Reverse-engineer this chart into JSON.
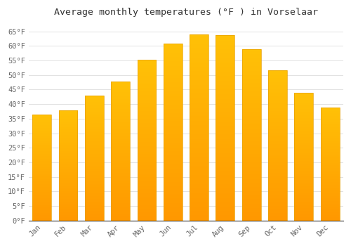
{
  "title": "Average monthly temperatures (°F ) in Vorselaar",
  "months": [
    "Jan",
    "Feb",
    "Mar",
    "Apr",
    "May",
    "Jun",
    "Jul",
    "Aug",
    "Sep",
    "Oct",
    "Nov",
    "Dec"
  ],
  "values": [
    36.3,
    37.9,
    43.0,
    47.8,
    55.2,
    60.8,
    63.9,
    63.7,
    58.8,
    51.6,
    43.9,
    38.8
  ],
  "bar_color_top": "#FFC107",
  "bar_color_bottom": "#FF9800",
  "background_color": "#FFFFFF",
  "grid_color": "#DDDDDD",
  "ylim": [
    0,
    68
  ],
  "yticks": [
    0,
    5,
    10,
    15,
    20,
    25,
    30,
    35,
    40,
    45,
    50,
    55,
    60,
    65
  ],
  "ytick_labels": [
    "0°F",
    "5°F",
    "10°F",
    "15°F",
    "20°F",
    "25°F",
    "30°F",
    "35°F",
    "40°F",
    "45°F",
    "50°F",
    "55°F",
    "60°F",
    "65°F"
  ],
  "title_fontsize": 9.5,
  "tick_fontsize": 7.5,
  "title_font": "monospace",
  "tick_font": "monospace",
  "bar_width": 0.72,
  "axis_color": "#333333"
}
